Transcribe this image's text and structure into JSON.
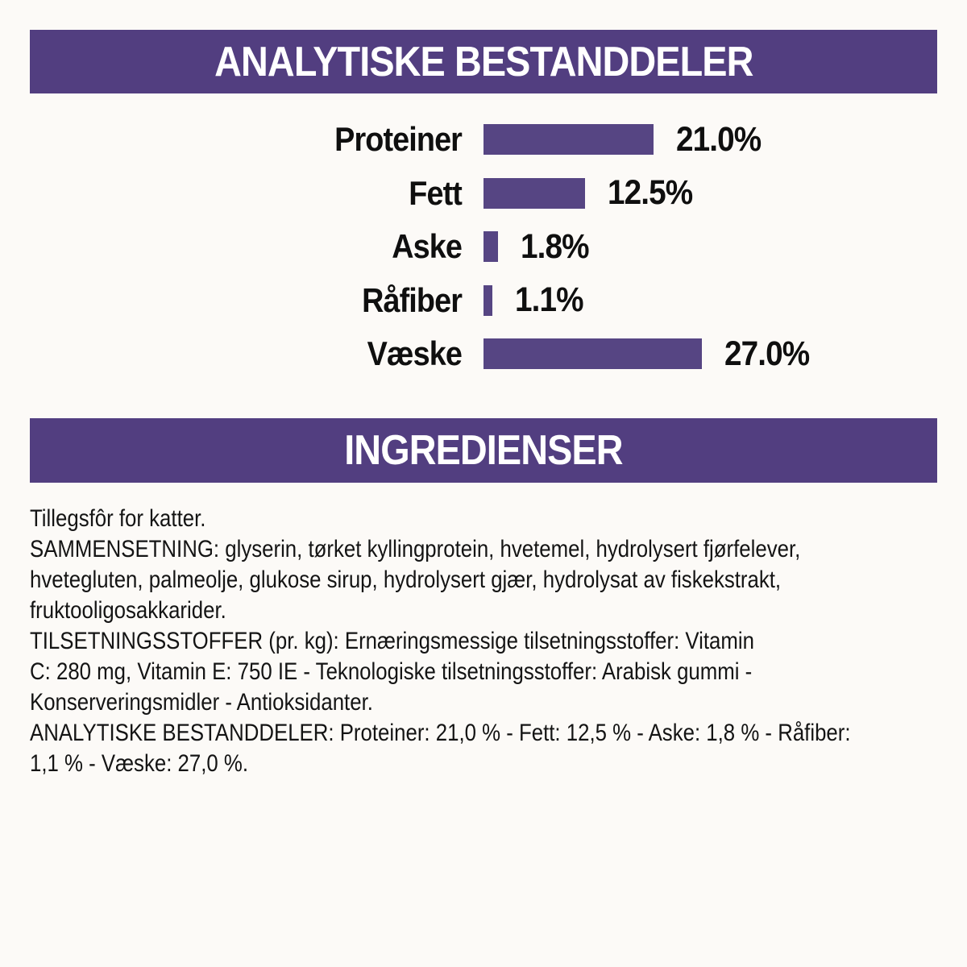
{
  "colors": {
    "band_purple": "#523e80",
    "bar_purple": "#564583",
    "background": "#fcfaf7",
    "band_text": "#ffffff",
    "body_text": "#141414"
  },
  "sections": {
    "analytical_header": "ANALYTISKE BESTANDDELER",
    "ingredients_header": "INGREDIENSER"
  },
  "chart_data": {
    "type": "bar",
    "orientation": "horizontal",
    "title": "ANALYTISKE BESTANDDELER",
    "categories": [
      "Proteiner",
      "Fett",
      "Aske",
      "Råfiber",
      "Væske"
    ],
    "values": [
      21.0,
      12.5,
      1.8,
      1.1,
      27.0
    ],
    "value_labels": [
      "21.0%",
      "12.5%",
      "1.8%",
      "1.1%",
      "27.0%"
    ],
    "unit": "%",
    "xlim": [
      0,
      28
    ],
    "bar_color": "#564583",
    "grid": false,
    "legend": "none"
  },
  "body": {
    "lines": [
      "Tillegsfôr for katter.",
      "SAMMENSETNING: glyserin, tørket kyllingprotein, hvetemel, hydrolysert fjørfelever,",
      "hvetegluten, palmeolje, glukose sirup, hydrolysert gjær, hydrolysat av fiskekstrakt,",
      "fruktooligosakkarider.",
      "TILSETNINGSSTOFFER (pr. kg): Ernæringsmessige tilsetningsstoffer: Vitamin",
      "C: 280 mg, Vitamin E: 750 IE - Teknologiske tilsetningsstoffer: Arabisk gummi -",
      "Konserveringsmidler - Antioksidanter.",
      "ANALYTISKE BESTANDDELER: Proteiner: 21,0 % - Fett: 12,5 % - Aske: 1,8 % - Råfiber:",
      "1,1 % - Væske: 27,0 %."
    ]
  }
}
